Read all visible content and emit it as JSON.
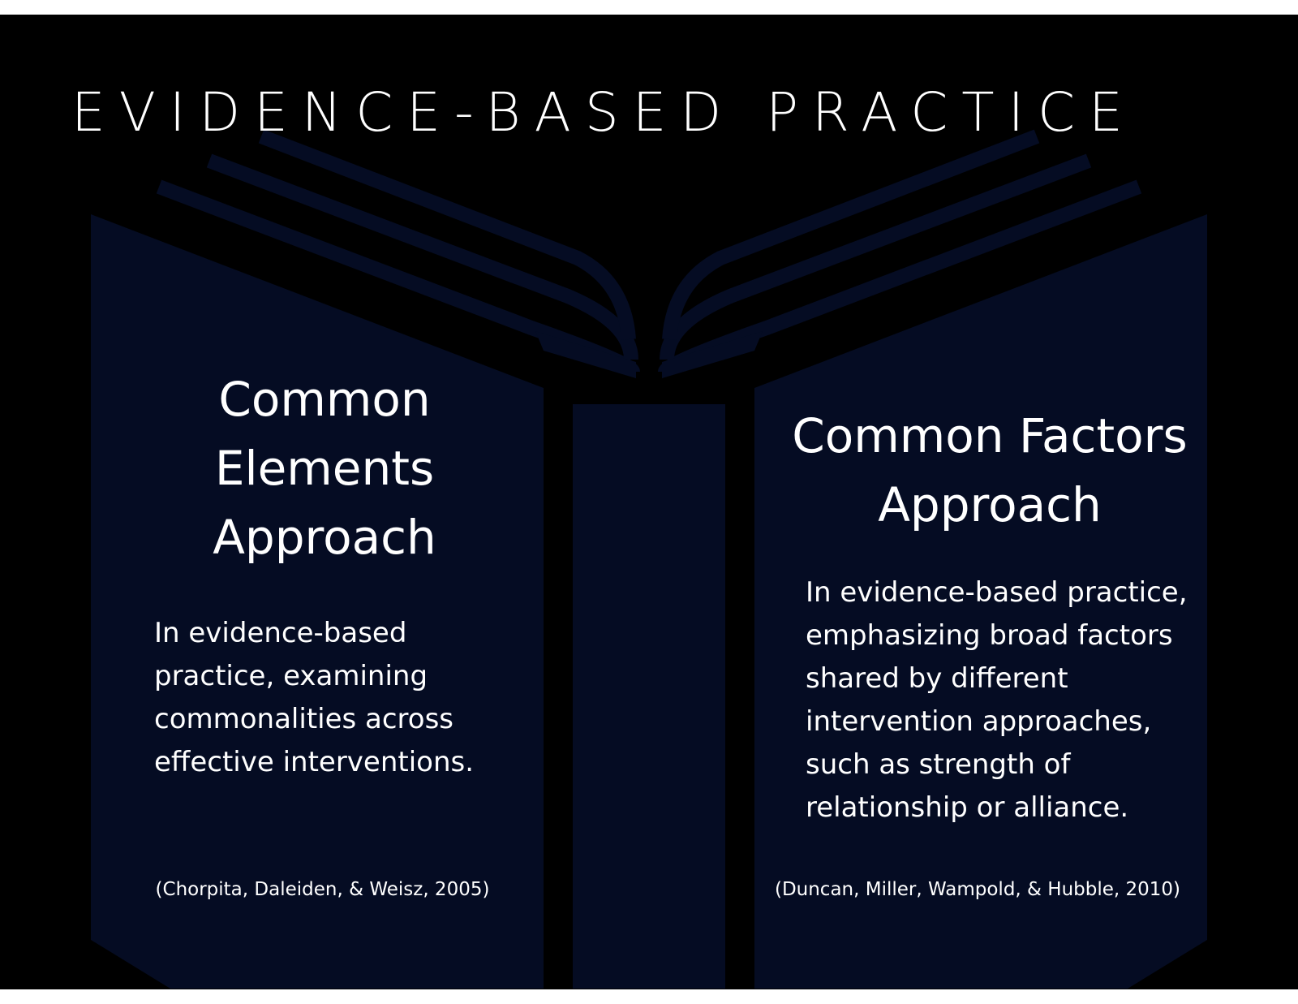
{
  "colors": {
    "background": "#000000",
    "book": "#050c23",
    "text": "#ffffff"
  },
  "icons": [
    "open-book-icon"
  ],
  "slide": {
    "title": "EVIDENCE-BASED PRACTICE",
    "left_column": {
      "heading_lines": [
        "Common",
        "Elements",
        "Approach"
      ],
      "body": "In evidence-based practice, examining commonalities across effective interventions.",
      "citation": "(Chorpita, Daleiden, & Weisz, 2005)"
    },
    "right_column": {
      "heading_lines": [
        "Common Factors",
        "Approach"
      ],
      "body": "In evidence-based practice, emphasizing broad factors shared by different intervention approaches, such as strength of relationship or alliance.",
      "citation": "(Duncan, Miller, Wampold, & Hubble, 2010)"
    }
  }
}
